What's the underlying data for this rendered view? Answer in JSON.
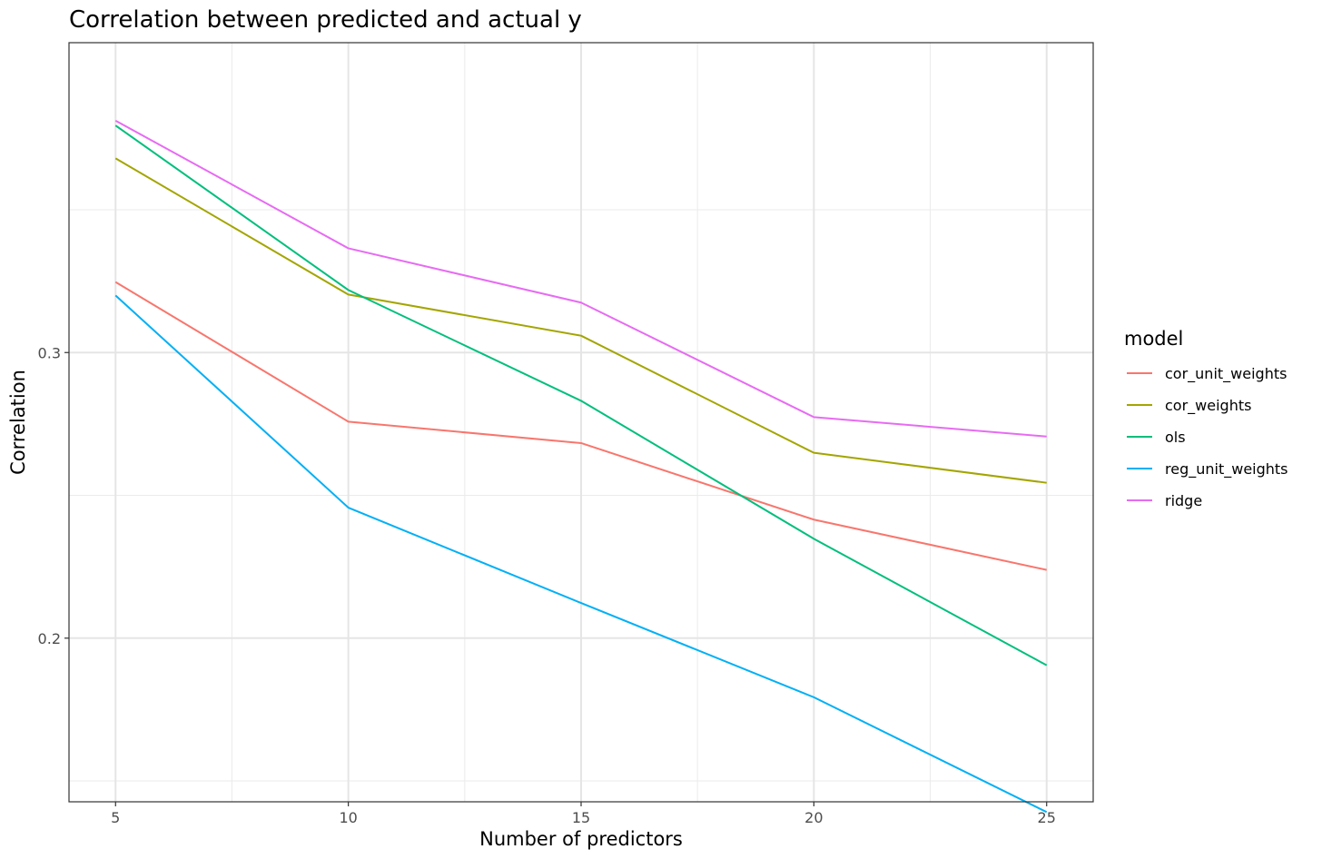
{
  "chart_data": {
    "type": "line",
    "title": "Correlation between predicted and actual y",
    "xlabel": "Number of predictors",
    "ylabel": "Correlation",
    "x": [
      5,
      10,
      15,
      20,
      25
    ],
    "x_ticks": [
      5,
      10,
      15,
      20,
      25
    ],
    "x_tick_labels": [
      "5",
      "10",
      "15",
      "20",
      "25"
    ],
    "x_minor_ticks": [
      7.5,
      12.5,
      17.5,
      22.5
    ],
    "xlim": [
      4,
      26
    ],
    "y_ticks": [
      0.2,
      0.3
    ],
    "y_tick_labels": [
      "0.2",
      "0.3"
    ],
    "y_minor_ticks": [
      0.15,
      0.25,
      0.35
    ],
    "ylim": [
      0.1427,
      0.4085
    ],
    "grid": true,
    "legend": {
      "title": "model",
      "position": "right"
    },
    "series": [
      {
        "name": "cor_unit_weights",
        "color": "#F8766D",
        "values": [
          0.3247,
          0.2758,
          0.2683,
          0.2415,
          0.2239
        ]
      },
      {
        "name": "cor_weights",
        "color": "#A3A500",
        "values": [
          0.368,
          0.3203,
          0.3059,
          0.2649,
          0.2544
        ]
      },
      {
        "name": "ols",
        "color": "#00BF7D",
        "values": [
          0.3795,
          0.3219,
          0.2831,
          0.2348,
          0.1905
        ]
      },
      {
        "name": "reg_unit_weights",
        "color": "#00B0F6",
        "values": [
          0.32,
          0.2457,
          0.2123,
          0.1793,
          0.1391
        ]
      },
      {
        "name": "ridge",
        "color": "#E76BF3",
        "values": [
          0.3812,
          0.3365,
          0.3175,
          0.2774,
          0.2706
        ]
      }
    ]
  }
}
